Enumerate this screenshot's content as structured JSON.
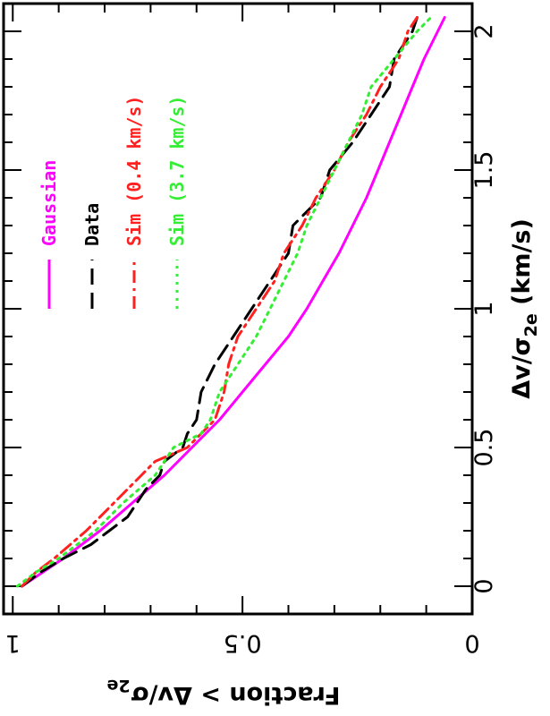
{
  "chart_data": {
    "type": "line",
    "orientation": "rotated-90",
    "x_axis": {
      "label_parts": {
        "delta_v": "Δv/σ",
        "sub": "2e",
        "unit": " (km/s)"
      },
      "range": [
        -0.1,
        2.1
      ],
      "ticks": [
        0,
        0.5,
        1,
        1.5,
        2
      ],
      "tick_labels": [
        "0",
        "0.5",
        "1",
        "1.5",
        "2"
      ]
    },
    "y_axis": {
      "label_parts": {
        "main": "Fraction > Δv/σ",
        "sub": "2e"
      },
      "range": [
        0,
        1.02
      ],
      "ticks": [
        0,
        0.5,
        1
      ],
      "tick_labels": [
        "0",
        "0.5",
        "1"
      ]
    },
    "grid": false,
    "legend_position": "upper-left (rotated)",
    "series": [
      {
        "name": "Gaussian",
        "color": "#ff00ff",
        "dash": "solid",
        "x": [
          0,
          0.1,
          0.2,
          0.3,
          0.4,
          0.5,
          0.6,
          0.7,
          0.8,
          0.9,
          1.0,
          1.1,
          1.2,
          1.3,
          1.4,
          1.5,
          1.6,
          1.7,
          1.8,
          1.9,
          2.0,
          2.05
        ],
        "y": [
          0.98,
          0.89,
          0.81,
          0.74,
          0.67,
          0.61,
          0.55,
          0.5,
          0.45,
          0.4,
          0.36,
          0.325,
          0.29,
          0.26,
          0.23,
          0.205,
          0.18,
          0.155,
          0.13,
          0.105,
          0.075,
          0.06
        ]
      },
      {
        "name": "Data",
        "color": "#000000",
        "dash": "dashed",
        "x": [
          0,
          0.05,
          0.1,
          0.15,
          0.2,
          0.25,
          0.3,
          0.35,
          0.4,
          0.45,
          0.5,
          0.55,
          0.6,
          0.7,
          0.8,
          0.9,
          1.0,
          1.1,
          1.2,
          1.3,
          1.4,
          1.5,
          1.6,
          1.7,
          1.8,
          1.9,
          2.0,
          2.05
        ],
        "y": [
          0.98,
          0.94,
          0.89,
          0.83,
          0.79,
          0.75,
          0.73,
          0.71,
          0.68,
          0.67,
          0.63,
          0.62,
          0.6,
          0.59,
          0.56,
          0.52,
          0.48,
          0.44,
          0.4,
          0.39,
          0.33,
          0.31,
          0.26,
          0.22,
          0.18,
          0.17,
          0.13,
          0.12
        ]
      },
      {
        "name": "Sim (0.4 km/s)",
        "color": "#ff2020",
        "dash": "dash-dot",
        "x": [
          0,
          0.05,
          0.1,
          0.2,
          0.3,
          0.4,
          0.45,
          0.5,
          0.55,
          0.6,
          0.7,
          0.8,
          0.9,
          1.0,
          1.1,
          1.2,
          1.3,
          1.4,
          1.5,
          1.6,
          1.7,
          1.8,
          1.9,
          2.0,
          2.05
        ],
        "y": [
          0.98,
          0.95,
          0.91,
          0.84,
          0.78,
          0.72,
          0.69,
          0.62,
          0.59,
          0.56,
          0.54,
          0.53,
          0.51,
          0.47,
          0.43,
          0.41,
          0.37,
          0.34,
          0.3,
          0.27,
          0.23,
          0.2,
          0.16,
          0.14,
          0.12
        ]
      },
      {
        "name": "Sim (3.7 km/s)",
        "color": "#33ee33",
        "dash": "dotted",
        "x": [
          0,
          0.05,
          0.1,
          0.2,
          0.3,
          0.4,
          0.5,
          0.55,
          0.6,
          0.7,
          0.8,
          0.9,
          1.0,
          1.1,
          1.2,
          1.3,
          1.4,
          1.5,
          1.6,
          1.7,
          1.8,
          1.9,
          2.0,
          2.05
        ],
        "y": [
          0.99,
          0.95,
          0.9,
          0.82,
          0.76,
          0.69,
          0.65,
          0.59,
          0.57,
          0.55,
          0.51,
          0.47,
          0.44,
          0.41,
          0.38,
          0.36,
          0.33,
          0.3,
          0.27,
          0.24,
          0.22,
          0.17,
          0.12,
          0.09
        ]
      }
    ]
  }
}
